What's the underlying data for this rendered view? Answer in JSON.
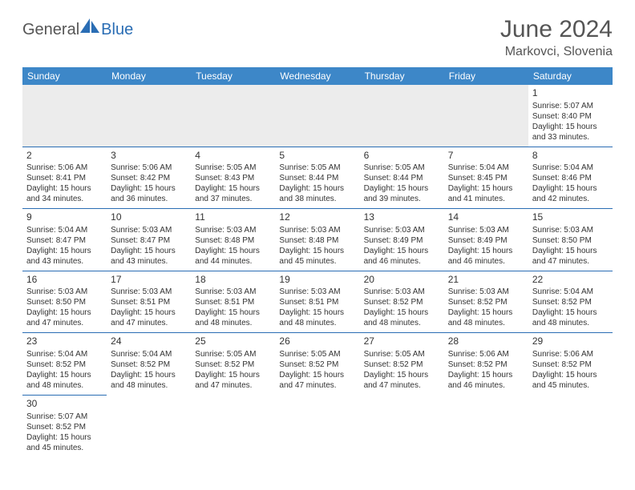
{
  "brand": {
    "part1": "General",
    "part2": "Blue"
  },
  "title": "June 2024",
  "location": "Markovci, Slovenia",
  "header_color": "#3d87c8",
  "border_color": "#2a6db4",
  "blank_bg": "#ececec",
  "text_color": "#333333",
  "columns": [
    "Sunday",
    "Monday",
    "Tuesday",
    "Wednesday",
    "Thursday",
    "Friday",
    "Saturday"
  ],
  "rows": [
    [
      {
        "empty": true
      },
      {
        "empty": true
      },
      {
        "empty": true
      },
      {
        "empty": true
      },
      {
        "empty": true
      },
      {
        "empty": true
      },
      {
        "day": "1",
        "sunrise": "5:07 AM",
        "sunset": "8:40 PM",
        "daylight": "15 hours and 33 minutes."
      }
    ],
    [
      {
        "day": "2",
        "sunrise": "5:06 AM",
        "sunset": "8:41 PM",
        "daylight": "15 hours and 34 minutes."
      },
      {
        "day": "3",
        "sunrise": "5:06 AM",
        "sunset": "8:42 PM",
        "daylight": "15 hours and 36 minutes."
      },
      {
        "day": "4",
        "sunrise": "5:05 AM",
        "sunset": "8:43 PM",
        "daylight": "15 hours and 37 minutes."
      },
      {
        "day": "5",
        "sunrise": "5:05 AM",
        "sunset": "8:44 PM",
        "daylight": "15 hours and 38 minutes."
      },
      {
        "day": "6",
        "sunrise": "5:05 AM",
        "sunset": "8:44 PM",
        "daylight": "15 hours and 39 minutes."
      },
      {
        "day": "7",
        "sunrise": "5:04 AM",
        "sunset": "8:45 PM",
        "daylight": "15 hours and 41 minutes."
      },
      {
        "day": "8",
        "sunrise": "5:04 AM",
        "sunset": "8:46 PM",
        "daylight": "15 hours and 42 minutes."
      }
    ],
    [
      {
        "day": "9",
        "sunrise": "5:04 AM",
        "sunset": "8:47 PM",
        "daylight": "15 hours and 43 minutes."
      },
      {
        "day": "10",
        "sunrise": "5:03 AM",
        "sunset": "8:47 PM",
        "daylight": "15 hours and 43 minutes."
      },
      {
        "day": "11",
        "sunrise": "5:03 AM",
        "sunset": "8:48 PM",
        "daylight": "15 hours and 44 minutes."
      },
      {
        "day": "12",
        "sunrise": "5:03 AM",
        "sunset": "8:48 PM",
        "daylight": "15 hours and 45 minutes."
      },
      {
        "day": "13",
        "sunrise": "5:03 AM",
        "sunset": "8:49 PM",
        "daylight": "15 hours and 46 minutes."
      },
      {
        "day": "14",
        "sunrise": "5:03 AM",
        "sunset": "8:49 PM",
        "daylight": "15 hours and 46 minutes."
      },
      {
        "day": "15",
        "sunrise": "5:03 AM",
        "sunset": "8:50 PM",
        "daylight": "15 hours and 47 minutes."
      }
    ],
    [
      {
        "day": "16",
        "sunrise": "5:03 AM",
        "sunset": "8:50 PM",
        "daylight": "15 hours and 47 minutes."
      },
      {
        "day": "17",
        "sunrise": "5:03 AM",
        "sunset": "8:51 PM",
        "daylight": "15 hours and 47 minutes."
      },
      {
        "day": "18",
        "sunrise": "5:03 AM",
        "sunset": "8:51 PM",
        "daylight": "15 hours and 48 minutes."
      },
      {
        "day": "19",
        "sunrise": "5:03 AM",
        "sunset": "8:51 PM",
        "daylight": "15 hours and 48 minutes."
      },
      {
        "day": "20",
        "sunrise": "5:03 AM",
        "sunset": "8:52 PM",
        "daylight": "15 hours and 48 minutes."
      },
      {
        "day": "21",
        "sunrise": "5:03 AM",
        "sunset": "8:52 PM",
        "daylight": "15 hours and 48 minutes."
      },
      {
        "day": "22",
        "sunrise": "5:04 AM",
        "sunset": "8:52 PM",
        "daylight": "15 hours and 48 minutes."
      }
    ],
    [
      {
        "day": "23",
        "sunrise": "5:04 AM",
        "sunset": "8:52 PM",
        "daylight": "15 hours and 48 minutes."
      },
      {
        "day": "24",
        "sunrise": "5:04 AM",
        "sunset": "8:52 PM",
        "daylight": "15 hours and 48 minutes."
      },
      {
        "day": "25",
        "sunrise": "5:05 AM",
        "sunset": "8:52 PM",
        "daylight": "15 hours and 47 minutes."
      },
      {
        "day": "26",
        "sunrise": "5:05 AM",
        "sunset": "8:52 PM",
        "daylight": "15 hours and 47 minutes."
      },
      {
        "day": "27",
        "sunrise": "5:05 AM",
        "sunset": "8:52 PM",
        "daylight": "15 hours and 47 minutes."
      },
      {
        "day": "28",
        "sunrise": "5:06 AM",
        "sunset": "8:52 PM",
        "daylight": "15 hours and 46 minutes."
      },
      {
        "day": "29",
        "sunrise": "5:06 AM",
        "sunset": "8:52 PM",
        "daylight": "15 hours and 45 minutes."
      }
    ],
    [
      {
        "day": "30",
        "sunrise": "5:07 AM",
        "sunset": "8:52 PM",
        "daylight": "15 hours and 45 minutes."
      },
      {
        "empty": true
      },
      {
        "empty": true
      },
      {
        "empty": true
      },
      {
        "empty": true
      },
      {
        "empty": true
      },
      {
        "empty": true
      }
    ]
  ]
}
